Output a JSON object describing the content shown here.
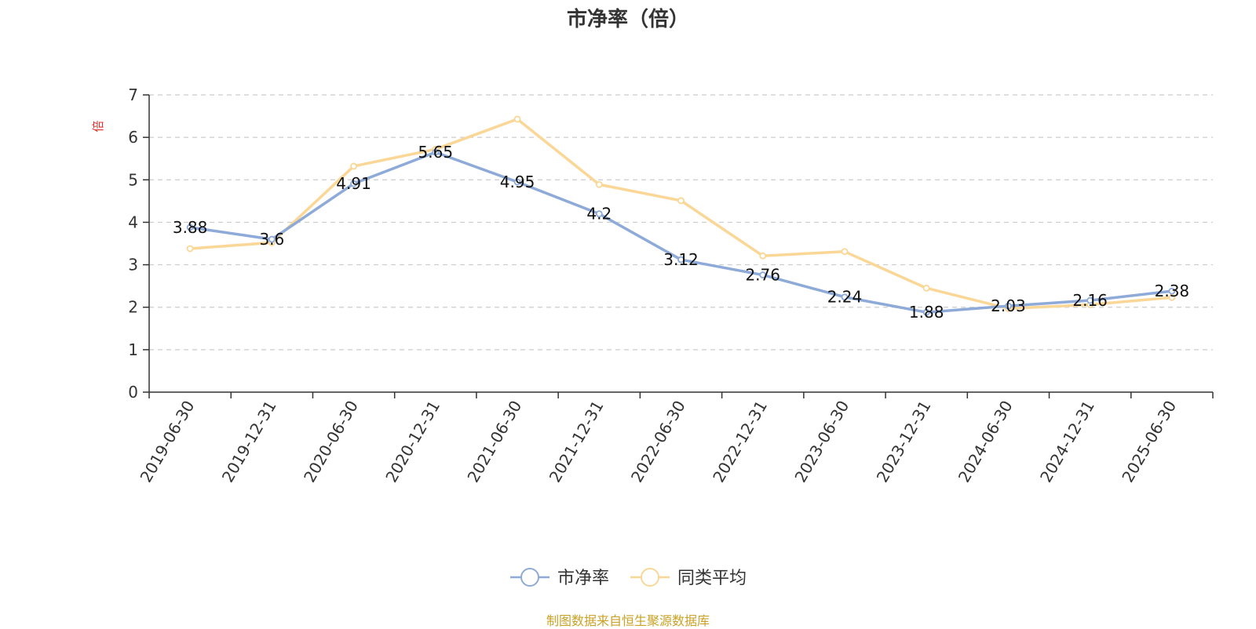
{
  "chart_data": {
    "type": "line",
    "title": "市净率（倍）",
    "ylabel": "倍",
    "ylim": [
      0,
      7
    ],
    "yticks": [
      0,
      1,
      2,
      3,
      4,
      5,
      6,
      7
    ],
    "grid": true,
    "legend_position": "bottom-center",
    "categories": [
      "2019-06-30",
      "2019-12-31",
      "2020-06-30",
      "2020-12-31",
      "2021-06-30",
      "2021-12-31",
      "2022-06-30",
      "2022-12-31",
      "2023-06-30",
      "2023-12-31",
      "2024-06-30",
      "2024-12-31",
      "2025-06-30"
    ],
    "series": [
      {
        "name": "市净率",
        "color": "#8eaad8",
        "values": [
          3.88,
          3.6,
          4.91,
          5.65,
          4.95,
          4.2,
          3.12,
          2.76,
          2.24,
          1.88,
          2.03,
          2.16,
          2.38
        ],
        "labels": [
          "3.88",
          "3.6",
          "4.91",
          "5.65",
          "4.95",
          "4.2",
          "3.12",
          "2.76",
          "2.24",
          "1.88",
          "2.03",
          "2.16",
          "2.38"
        ]
      },
      {
        "name": "同类平均",
        "color": "#fad796",
        "values": [
          3.38,
          3.52,
          5.32,
          5.72,
          6.43,
          4.89,
          4.51,
          3.21,
          3.31,
          2.45,
          1.97,
          2.06,
          2.23
        ]
      }
    ],
    "source": "制图数据来自恒生聚源数据库"
  },
  "colors": {
    "ylabel": "#e0322c",
    "axis": "#333333",
    "grid": "#cccccc",
    "source": "#c9a227"
  }
}
